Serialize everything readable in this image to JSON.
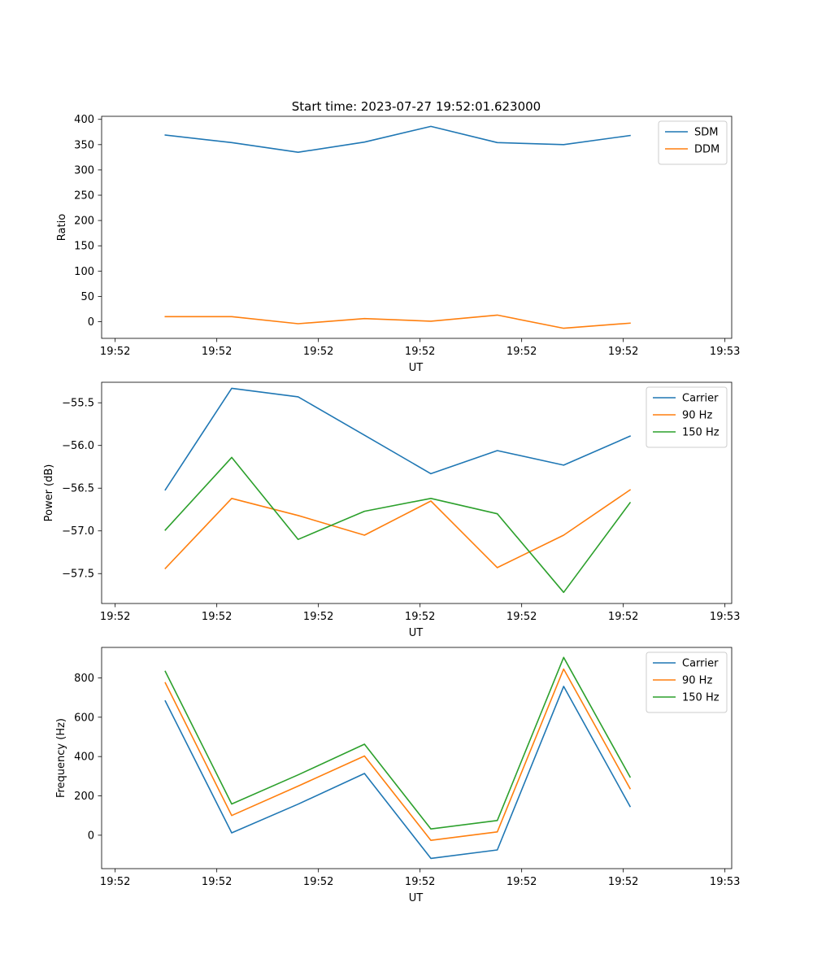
{
  "figure_title": "Start time: 2023-07-27 19:52:01.623000",
  "chart_data": [
    {
      "type": "line",
      "title": "Start time: 2023-07-27 19:52:01.623000",
      "xlabel": "UT",
      "ylabel": "Ratio",
      "xlim": [
        -0.2,
        9.1
      ],
      "x_ticks": [
        0,
        1.5,
        3,
        4.5,
        6,
        7.5,
        9
      ],
      "x_tick_labels": [
        "19:52",
        "19:52",
        "19:52",
        "19:52",
        "19:52",
        "19:52",
        "19:53"
      ],
      "ylim": [
        -33,
        406
      ],
      "y_ticks": [
        0,
        50,
        100,
        150,
        200,
        250,
        300,
        350,
        400
      ],
      "y_tick_labels": [
        "0",
        "50",
        "100",
        "150",
        "200",
        "250",
        "300",
        "350",
        "400"
      ],
      "x": [
        0.74,
        1.72,
        2.7,
        3.68,
        4.66,
        5.64,
        6.62,
        7.6
      ],
      "legend_position": "top-right",
      "series": [
        {
          "name": "SDM",
          "color": "#1f77b4",
          "values": [
            369,
            354,
            335,
            355,
            386,
            354,
            350,
            368
          ]
        },
        {
          "name": "DDM",
          "color": "#ff7f0e",
          "values": [
            10,
            10,
            -4,
            6,
            1,
            13,
            -13,
            -3
          ]
        }
      ]
    },
    {
      "type": "line",
      "title": "",
      "xlabel": "UT",
      "ylabel": "Power (dB)",
      "xlim": [
        -0.2,
        9.1
      ],
      "x_ticks": [
        0,
        1.5,
        3,
        4.5,
        6,
        7.5,
        9
      ],
      "x_tick_labels": [
        "19:52",
        "19:52",
        "19:52",
        "19:52",
        "19:52",
        "19:52",
        "19:53"
      ],
      "ylim": [
        -57.85,
        -55.26
      ],
      "y_ticks": [
        -57.5,
        -57.0,
        -56.5,
        -56.0,
        -55.5
      ],
      "y_tick_labels": [
        "−57.5",
        "−57.0",
        "−56.5",
        "−56.0",
        "−55.5"
      ],
      "x": [
        0.74,
        1.72,
        2.7,
        3.68,
        4.66,
        5.64,
        6.62,
        7.6
      ],
      "legend_position": "top-right",
      "series": [
        {
          "name": "Carrier",
          "color": "#1f77b4",
          "values": [
            -56.52,
            -55.33,
            -55.43,
            -55.88,
            -56.33,
            -56.06,
            -56.23,
            -55.89
          ]
        },
        {
          "name": "90 Hz",
          "color": "#ff7f0e",
          "values": [
            -57.44,
            -56.62,
            -56.82,
            -57.05,
            -56.65,
            -57.43,
            -57.05,
            -56.52
          ]
        },
        {
          "name": "150 Hz",
          "color": "#2ca02c",
          "values": [
            -56.99,
            -56.14,
            -57.1,
            -56.77,
            -56.62,
            -56.8,
            -57.72,
            -56.67
          ]
        }
      ]
    },
    {
      "type": "line",
      "title": "",
      "xlabel": "UT",
      "ylabel": "Frequency (Hz)",
      "xlim": [
        -0.2,
        9.1
      ],
      "x_ticks": [
        0,
        1.5,
        3,
        4.5,
        6,
        7.5,
        9
      ],
      "x_tick_labels": [
        "19:52",
        "19:52",
        "19:52",
        "19:52",
        "19:52",
        "19:52",
        "19:53"
      ],
      "ylim": [
        -170,
        955
      ],
      "y_ticks": [
        0,
        200,
        400,
        600,
        800
      ],
      "y_tick_labels": [
        "0",
        "200",
        "400",
        "600",
        "800"
      ],
      "x": [
        0.74,
        1.72,
        2.7,
        3.68,
        4.66,
        5.64,
        6.62,
        7.6
      ],
      "legend_position": "top-right",
      "series": [
        {
          "name": "Carrier",
          "color": "#1f77b4",
          "values": [
            683,
            12,
            158,
            314,
            -118,
            -75,
            757,
            146
          ]
        },
        {
          "name": "90 Hz",
          "color": "#ff7f0e",
          "values": [
            775,
            100,
            250,
            403,
            -26,
            17,
            845,
            237
          ]
        },
        {
          "name": "150 Hz",
          "color": "#2ca02c",
          "values": [
            833,
            159,
            307,
            463,
            32,
            75,
            904,
            296
          ]
        }
      ]
    }
  ]
}
